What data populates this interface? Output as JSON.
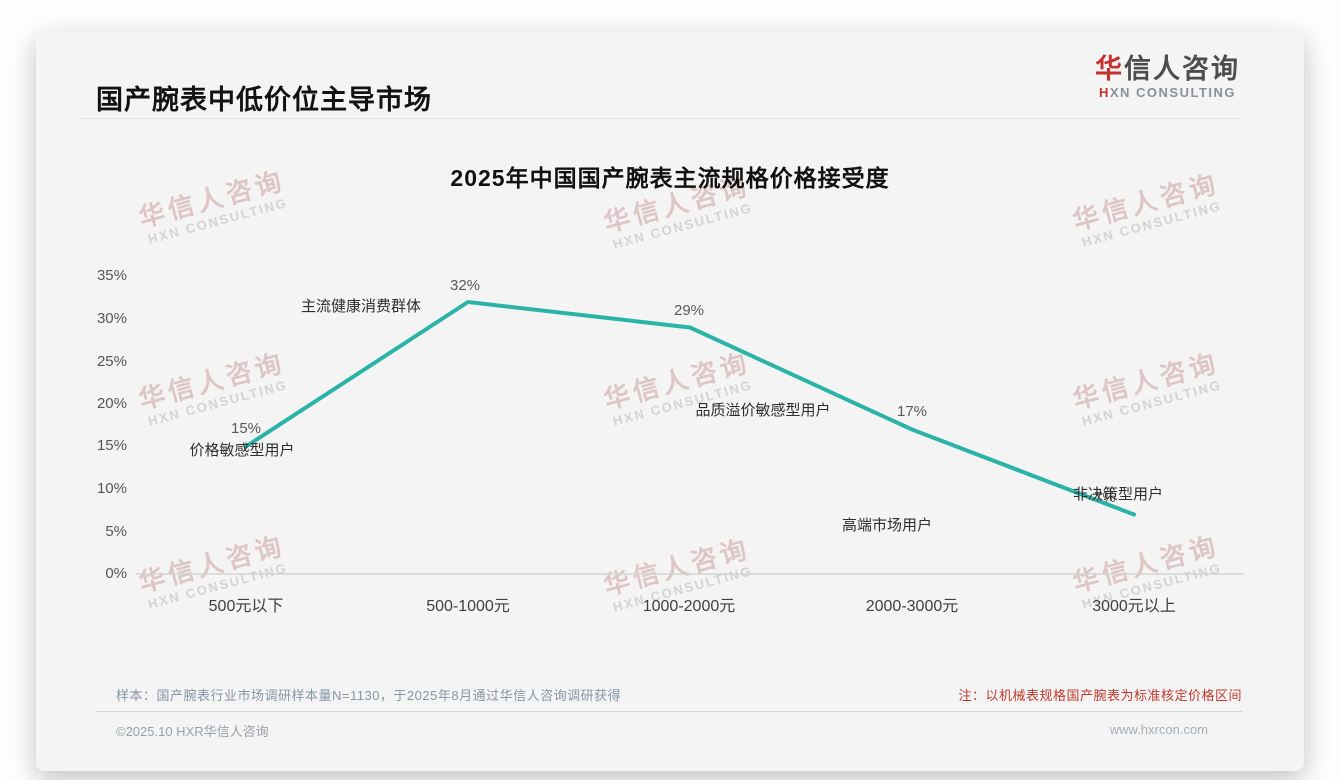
{
  "header": {
    "title": "国产腕表中低价位主导市场",
    "logo": {
      "cn_first": "华",
      "cn_rest": "信人咨询",
      "en_first": "H",
      "en_rest": "XN CONSULTING"
    }
  },
  "watermark": {
    "line1": "华信人咨询",
    "line2": "HXN CONSULTING"
  },
  "chart_data": {
    "type": "line",
    "title": "2025年中国国产腕表主流规格价格接受度",
    "categories": [
      "500元以下",
      "500-1000元",
      "1000-2000元",
      "2000-3000元",
      "3000元以上"
    ],
    "values": [
      15,
      32,
      29,
      17,
      7
    ],
    "value_labels": [
      "15%",
      "32%",
      "29%",
      "17%",
      "7%"
    ],
    "annotations": [
      "价格敏感型用户",
      "主流健康消费群体",
      "品质溢价敏感型用户",
      "高端市场用户",
      "非决策型用户"
    ],
    "yticks": [
      "35%",
      "30%",
      "25%",
      "20%",
      "15%",
      "10%",
      "5%",
      "0%"
    ],
    "ylim": [
      0,
      35
    ],
    "grid": false,
    "legend": "none",
    "line_color": "#2bb3a8"
  },
  "footer": {
    "sample_note": "样本：国产腕表行业市场调研样本量N=1130，于2025年8月通过华信人咨询调研获得",
    "price_note": "注：以机械表规格国产腕表为标准核定价格区间",
    "copyright": "©2025.10 HXR华信人咨询",
    "website": "www.hxrcon.com"
  }
}
